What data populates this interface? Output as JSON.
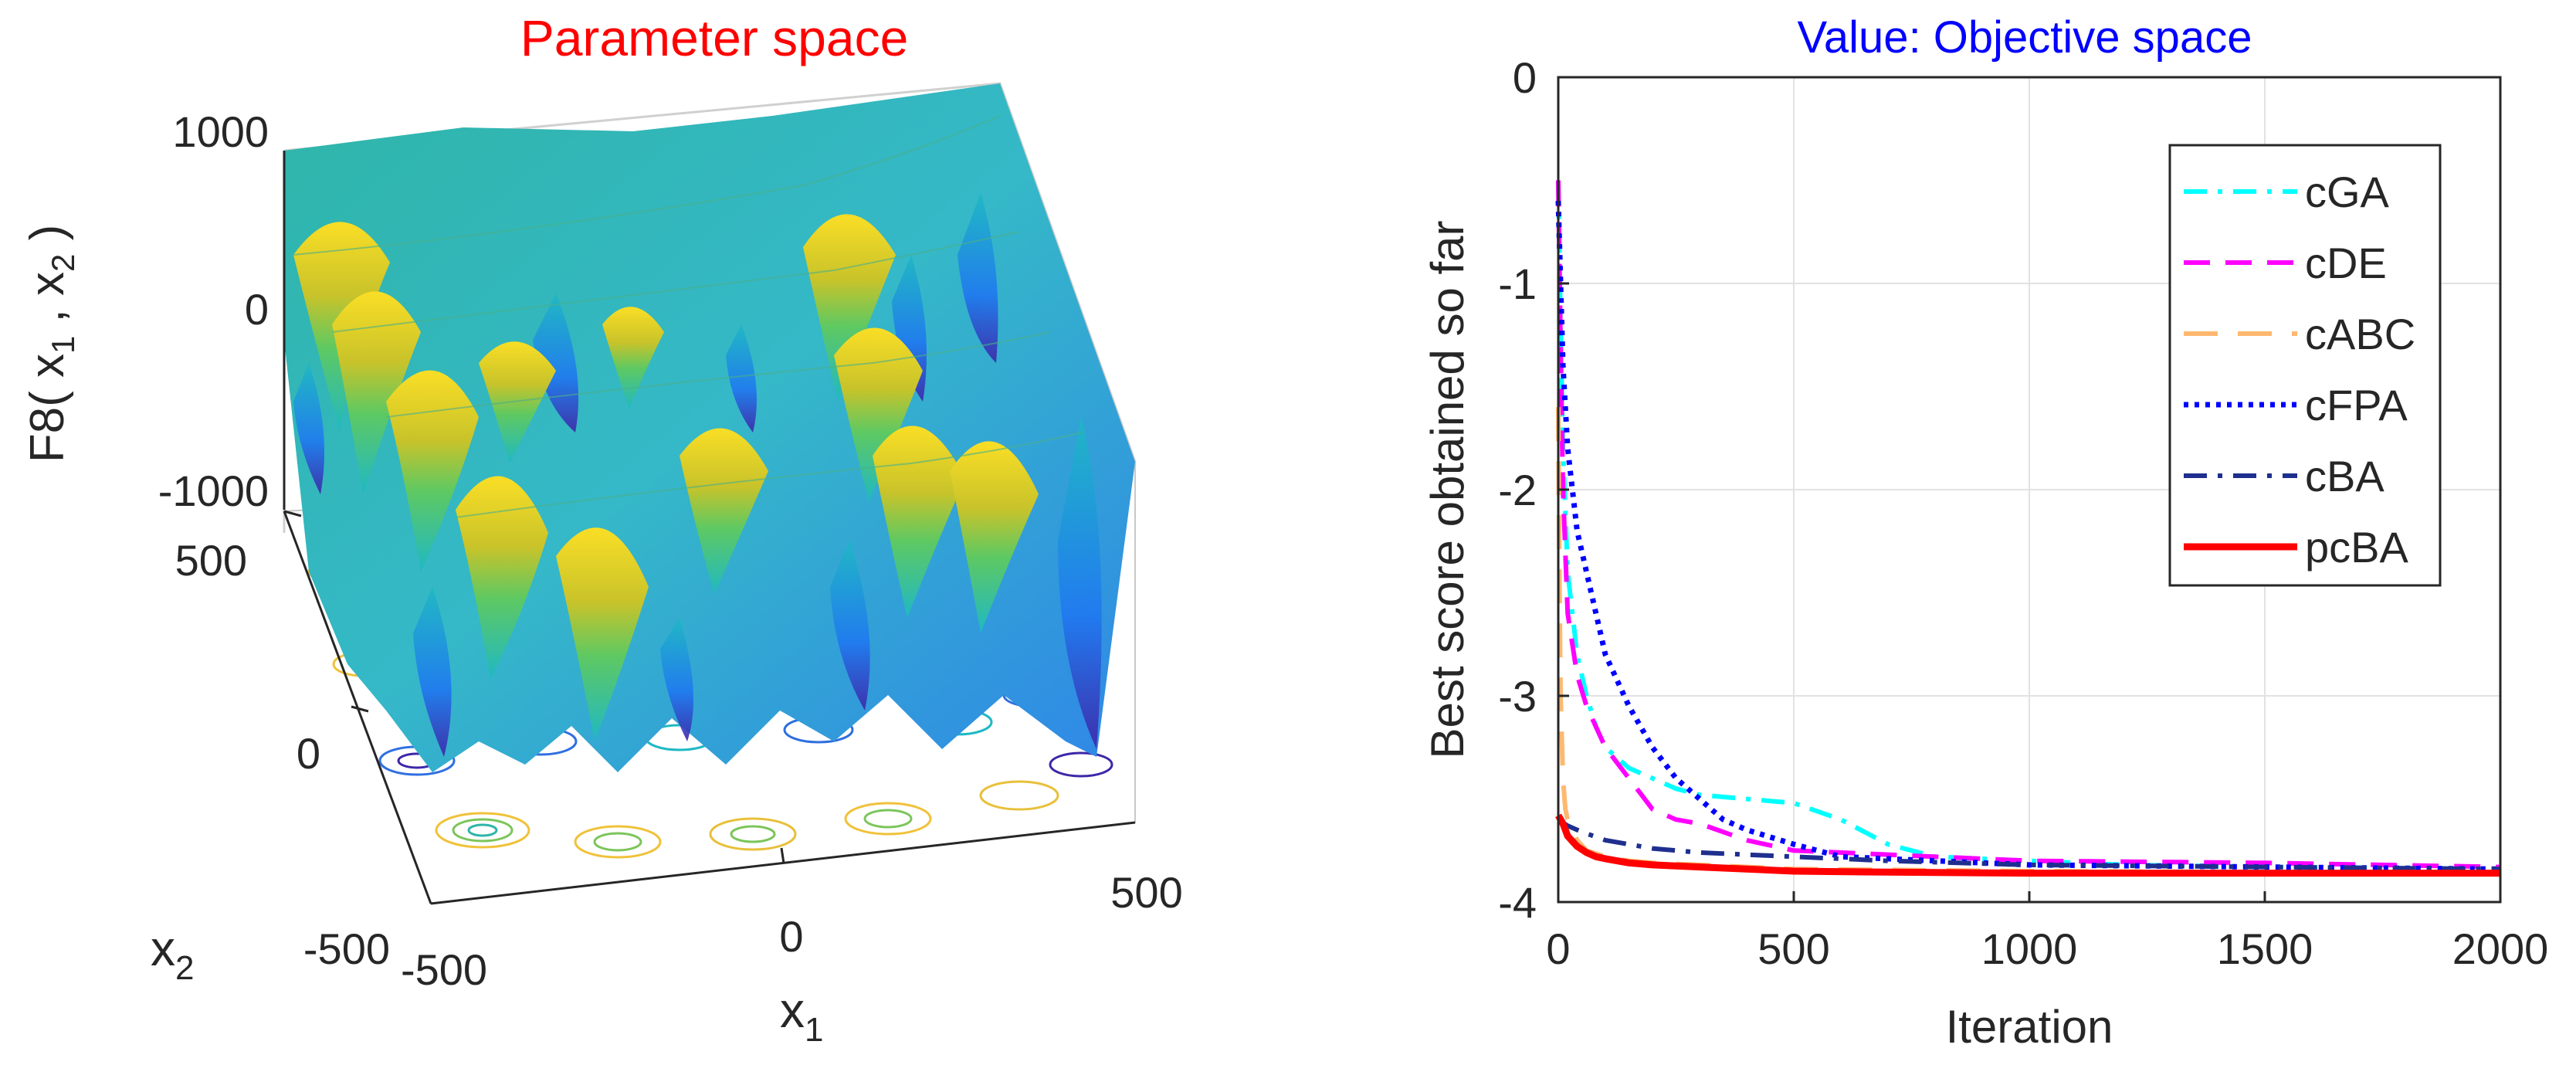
{
  "left_panel": {
    "title": "Parameter space",
    "title_color": "#ff0000",
    "zlabel_main": "F8( x",
    "zlabel_sub1": "1",
    "zlabel_mid": " , x",
    "zlabel_sub2": "2",
    "zlabel_end": " )",
    "xlabel_main": "x",
    "xlabel_sub": "1",
    "ylabel_main": "x",
    "ylabel_sub": "2",
    "z_ticks": [
      "1000",
      "0",
      "-1000"
    ],
    "y_ticks": [
      "500",
      "0",
      "-500"
    ],
    "x_ticks": [
      "-500",
      "0",
      "500"
    ],
    "surface_colormap": [
      "#3e26a8",
      "#1f78f0",
      "#1fb8c4",
      "#5ec962",
      "#c8c32a",
      "#fade26"
    ]
  },
  "chart_data": {
    "type": "line",
    "title": "Value: Objective space",
    "title_color": "#0000ff",
    "xlabel": "Iteration",
    "ylabel": "Best score obtained so far",
    "xlim": [
      0,
      2000
    ],
    "ylim": [
      -4,
      0
    ],
    "x_ticks": [
      0,
      500,
      1000,
      1500,
      2000
    ],
    "y_ticks": [
      0,
      -1,
      -2,
      -3,
      -4
    ],
    "grid": true,
    "legend_position": "top-right",
    "series": [
      {
        "name": "cGA",
        "color": "#00ffff",
        "dash": "dashdot",
        "x": [
          0,
          5,
          10,
          20,
          40,
          60,
          80,
          100,
          150,
          200,
          250,
          300,
          400,
          500,
          600,
          700,
          800,
          1000,
          1200,
          1500,
          2000
        ],
        "values": [
          -0.5,
          -1.2,
          -1.8,
          -2.4,
          -2.8,
          -3.0,
          -3.15,
          -3.25,
          -3.35,
          -3.4,
          -3.45,
          -3.48,
          -3.5,
          -3.52,
          -3.6,
          -3.72,
          -3.78,
          -3.8,
          -3.82,
          -3.83,
          -3.84
        ]
      },
      {
        "name": "cDE",
        "color": "#ff00ff",
        "dash": "dash",
        "x": [
          0,
          5,
          10,
          20,
          40,
          60,
          80,
          100,
          150,
          200,
          250,
          300,
          400,
          500,
          1000,
          1500,
          2000
        ],
        "values": [
          -0.5,
          -1.3,
          -2.0,
          -2.6,
          -2.9,
          -3.05,
          -3.15,
          -3.25,
          -3.4,
          -3.55,
          -3.6,
          -3.62,
          -3.7,
          -3.75,
          -3.8,
          -3.81,
          -3.83
        ]
      },
      {
        "name": "cABC",
        "color": "#ffb870",
        "dash": "longdash",
        "x": [
          0,
          2,
          5,
          10,
          15,
          20,
          40,
          60,
          100,
          150,
          200,
          300,
          500,
          1000,
          2000
        ],
        "values": [
          -1.6,
          -2.3,
          -3.0,
          -3.4,
          -3.55,
          -3.6,
          -3.7,
          -3.75,
          -3.78,
          -3.8,
          -3.81,
          -3.82,
          -3.84,
          -3.85,
          -3.86
        ]
      },
      {
        "name": "cFPA",
        "color": "#0000ff",
        "dash": "dot",
        "x": [
          0,
          5,
          10,
          20,
          30,
          40,
          60,
          80,
          100,
          150,
          200,
          250,
          300,
          350,
          400,
          500,
          600,
          800,
          1000,
          1500,
          2000
        ],
        "values": [
          -0.6,
          -1.0,
          -1.4,
          -1.8,
          -2.0,
          -2.2,
          -2.4,
          -2.6,
          -2.8,
          -3.05,
          -3.25,
          -3.4,
          -3.5,
          -3.6,
          -3.65,
          -3.72,
          -3.78,
          -3.8,
          -3.82,
          -3.83,
          -3.84
        ]
      },
      {
        "name": "cBA",
        "color": "#1f2f8f",
        "dash": "dashdot",
        "x": [
          0,
          20,
          50,
          100,
          150,
          200,
          300,
          400,
          500,
          700,
          1000,
          1500,
          2000
        ],
        "values": [
          -3.6,
          -3.63,
          -3.66,
          -3.7,
          -3.72,
          -3.74,
          -3.76,
          -3.77,
          -3.78,
          -3.8,
          -3.82,
          -3.83,
          -3.84
        ]
      },
      {
        "name": "pcBA",
        "color": "#ff0000",
        "dash": "solid",
        "x": [
          0,
          10,
          20,
          40,
          60,
          80,
          100,
          150,
          200,
          300,
          500,
          700,
          1000,
          1500,
          2000
        ],
        "values": [
          -3.58,
          -3.62,
          -3.68,
          -3.73,
          -3.76,
          -3.78,
          -3.79,
          -3.81,
          -3.82,
          -3.83,
          -3.85,
          -3.855,
          -3.86,
          -3.86,
          -3.86
        ]
      }
    ]
  }
}
